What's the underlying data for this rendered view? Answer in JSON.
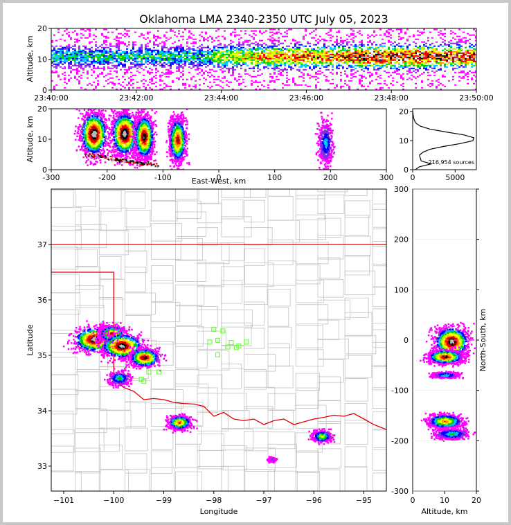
{
  "title": "Oklahoma LMA 2340-2350 UTC July 05, 2023",
  "chart_data": [
    {
      "name": "time-altitude",
      "type": "heatmap",
      "x_ticks": [
        "23:40:00",
        "23:42:00",
        "23:44:00",
        "23:46:00",
        "23:48:00",
        "23:50:00"
      ],
      "xlim_minutes": [
        0,
        10
      ],
      "y_ticks": [
        "0",
        "10",
        "20"
      ],
      "ylim": [
        0,
        20
      ],
      "ylabel": "Altitude, km"
    },
    {
      "name": "eastwest-altitude",
      "type": "heatmap",
      "x_ticks": [
        "-300",
        "-200",
        "-100",
        "0",
        "100",
        "200",
        "300"
      ],
      "xlim": [
        -300,
        300
      ],
      "y_ticks": [
        "0",
        "10",
        "20"
      ],
      "ylim": [
        0,
        20
      ],
      "xlabel": "East-West, km",
      "ylabel": "Altitude, km",
      "clusters": [
        {
          "x": -225,
          "alt": 12,
          "intensity": 1.0
        },
        {
          "x": -170,
          "alt": 12,
          "intensity": 1.0
        },
        {
          "x": -135,
          "alt": 11,
          "intensity": 0.9
        },
        {
          "x": -75,
          "alt": 10,
          "intensity": 0.8
        },
        {
          "x": 190,
          "alt": 9,
          "intensity": 0.3
        }
      ]
    },
    {
      "name": "altitude-histogram",
      "type": "line",
      "x_ticks": [
        "0",
        "5000"
      ],
      "xlim": [
        0,
        7500
      ],
      "y_ticks": [
        "0",
        "10",
        "20"
      ],
      "ylim": [
        0,
        21
      ],
      "annotation": "216,954 sources",
      "alt": [
        0,
        1,
        2,
        3,
        4,
        5,
        6,
        7,
        8,
        9,
        10,
        11,
        12,
        13,
        14,
        15,
        16,
        17,
        18,
        19,
        20
      ],
      "counts": [
        300,
        800,
        2200,
        1000,
        900,
        800,
        1200,
        2000,
        3600,
        5600,
        7100,
        7200,
        6000,
        3900,
        2000,
        900,
        400,
        200,
        100,
        50,
        20
      ]
    },
    {
      "name": "plan-view",
      "type": "heatmap",
      "x_ticks": [
        "-101",
        "-100",
        "-99",
        "-98",
        "-97",
        "-96",
        "-95"
      ],
      "xlim": [
        -101.25,
        -94.55
      ],
      "y_ticks": [
        "33",
        "34",
        "35",
        "36",
        "37"
      ],
      "ylim": [
        32.55,
        38.0
      ],
      "xlabel": "Longitude",
      "ylabel": "Latitude",
      "clusters": [
        {
          "lon": -100.4,
          "lat": 35.3,
          "intensity": 1.0
        },
        {
          "lon": -100.05,
          "lat": 35.4,
          "intensity": 0.8
        },
        {
          "lon": -99.85,
          "lat": 35.18,
          "intensity": 1.0
        },
        {
          "lon": -99.4,
          "lat": 34.97,
          "intensity": 0.9
        },
        {
          "lon": -99.9,
          "lat": 34.6,
          "intensity": 0.4
        },
        {
          "lon": -98.7,
          "lat": 33.8,
          "intensity": 0.75
        },
        {
          "lon": -95.85,
          "lat": 33.55,
          "intensity": 0.55
        },
        {
          "lon": -96.85,
          "lat": 33.13,
          "intensity": 0.15
        }
      ],
      "stations": [
        [
          -98.0,
          35.47
        ],
        [
          -97.82,
          35.44
        ],
        [
          -97.92,
          35.27
        ],
        [
          -98.08,
          35.24
        ],
        [
          -97.65,
          35.23
        ],
        [
          -97.35,
          35.24
        ],
        [
          -97.5,
          35.17
        ],
        [
          -97.72,
          35.15
        ],
        [
          -97.55,
          35.14
        ],
        [
          -97.92,
          35.01
        ],
        [
          -99.3,
          34.7
        ],
        [
          -99.1,
          34.7
        ],
        [
          -99.45,
          34.57
        ],
        [
          -99.4,
          34.53
        ]
      ]
    },
    {
      "name": "altitude-northsouth",
      "type": "heatmap",
      "x_ticks": [
        "0",
        "10",
        "20"
      ],
      "xlim": [
        0,
        20
      ],
      "y_ticks": [
        "-300",
        "-200",
        "-100",
        "0",
        "100",
        "200",
        "300"
      ],
      "ylim": [
        -300,
        300
      ],
      "xlabel": "Altitude, km",
      "ylabel": "North-South, km",
      "clusters": [
        {
          "alt": 12,
          "ns": -2,
          "intensity": 1.0
        },
        {
          "alt": 10,
          "ns": -32,
          "intensity": 0.9
        },
        {
          "alt": 10,
          "ns": -68,
          "intensity": 0.4
        },
        {
          "alt": 10,
          "ns": -160,
          "intensity": 0.7
        },
        {
          "alt": 12,
          "ns": -185,
          "intensity": 0.4
        }
      ]
    }
  ]
}
